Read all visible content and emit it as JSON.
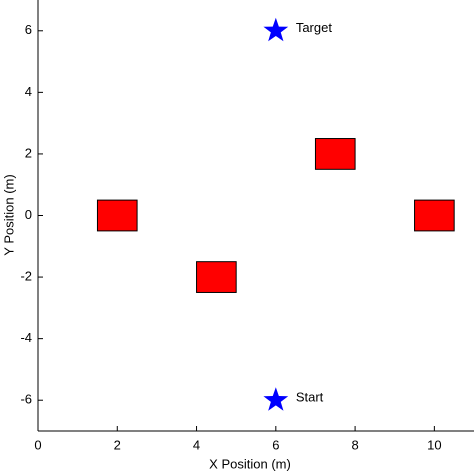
{
  "chart_data": {
    "type": "scatter",
    "x_label": "X Position (m)",
    "y_label": "Y Position (m)",
    "xlim": [
      0,
      11
    ],
    "ylim": [
      -7,
      7
    ],
    "xticks": [
      0,
      2,
      4,
      6,
      8,
      10
    ],
    "yticks": [
      -6,
      -4,
      -2,
      0,
      2,
      4,
      6
    ],
    "rectangles": {
      "color": "#ff0000",
      "x": [
        2,
        4.5,
        7.5,
        10
      ],
      "y": [
        0,
        -2,
        2,
        0
      ],
      "width": [
        1,
        1,
        1,
        1
      ],
      "height": [
        1,
        1,
        1,
        1
      ]
    },
    "points": {
      "color": "#0000ff",
      "labels": [
        "Target",
        "Start"
      ],
      "x": [
        6,
        6
      ],
      "y": [
        6,
        -6
      ]
    }
  }
}
